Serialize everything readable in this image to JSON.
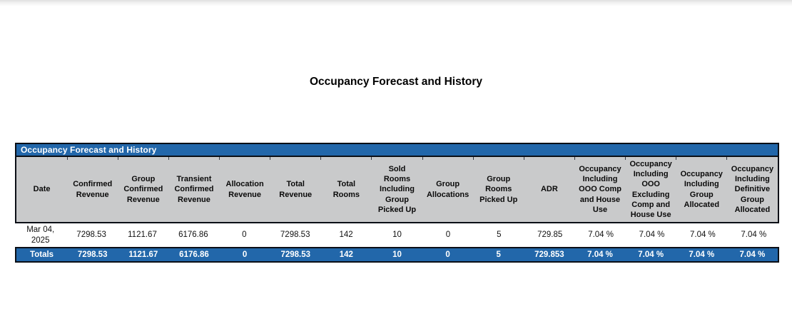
{
  "page": {
    "title": "Occupancy Forecast and History"
  },
  "table": {
    "title": "Occupancy Forecast and History",
    "columns": [
      "Date",
      "Confirmed Revenue",
      "Group Confirmed Revenue",
      "Transient Confirmed Revenue",
      "Allocation Revenue",
      "Total Revenue",
      "Total Rooms",
      "Sold Rooms Including Group Picked Up",
      "Group Allocations",
      "Group Rooms Picked Up",
      "ADR",
      "Occupancy Including OOO Comp and House Use",
      "Occupancy Including OOO Excluding Comp and House Use",
      "Occupancy Including Group Allocated",
      "Occupancy Including Definitive Group Allocated"
    ],
    "rows": [
      {
        "cells": [
          "Mar 04, 2025",
          "7298.53",
          "1121.67",
          "6176.86",
          "0",
          "7298.53",
          "142",
          "10",
          "0",
          "5",
          "729.85",
          "7.04 %",
          "7.04 %",
          "7.04 %",
          "7.04 %"
        ]
      }
    ],
    "totals": {
      "label": "Totals",
      "cells": [
        "7298.53",
        "1121.67",
        "6176.86",
        "0",
        "7298.53",
        "142",
        "10",
        "0",
        "5",
        "729.853",
        "7.04 %",
        "7.04 %",
        "7.04 %",
        "7.04 %"
      ]
    }
  },
  "colors": {
    "blue": "#2267aa",
    "gray": "#c9cacb",
    "border": "#0b0f16"
  }
}
